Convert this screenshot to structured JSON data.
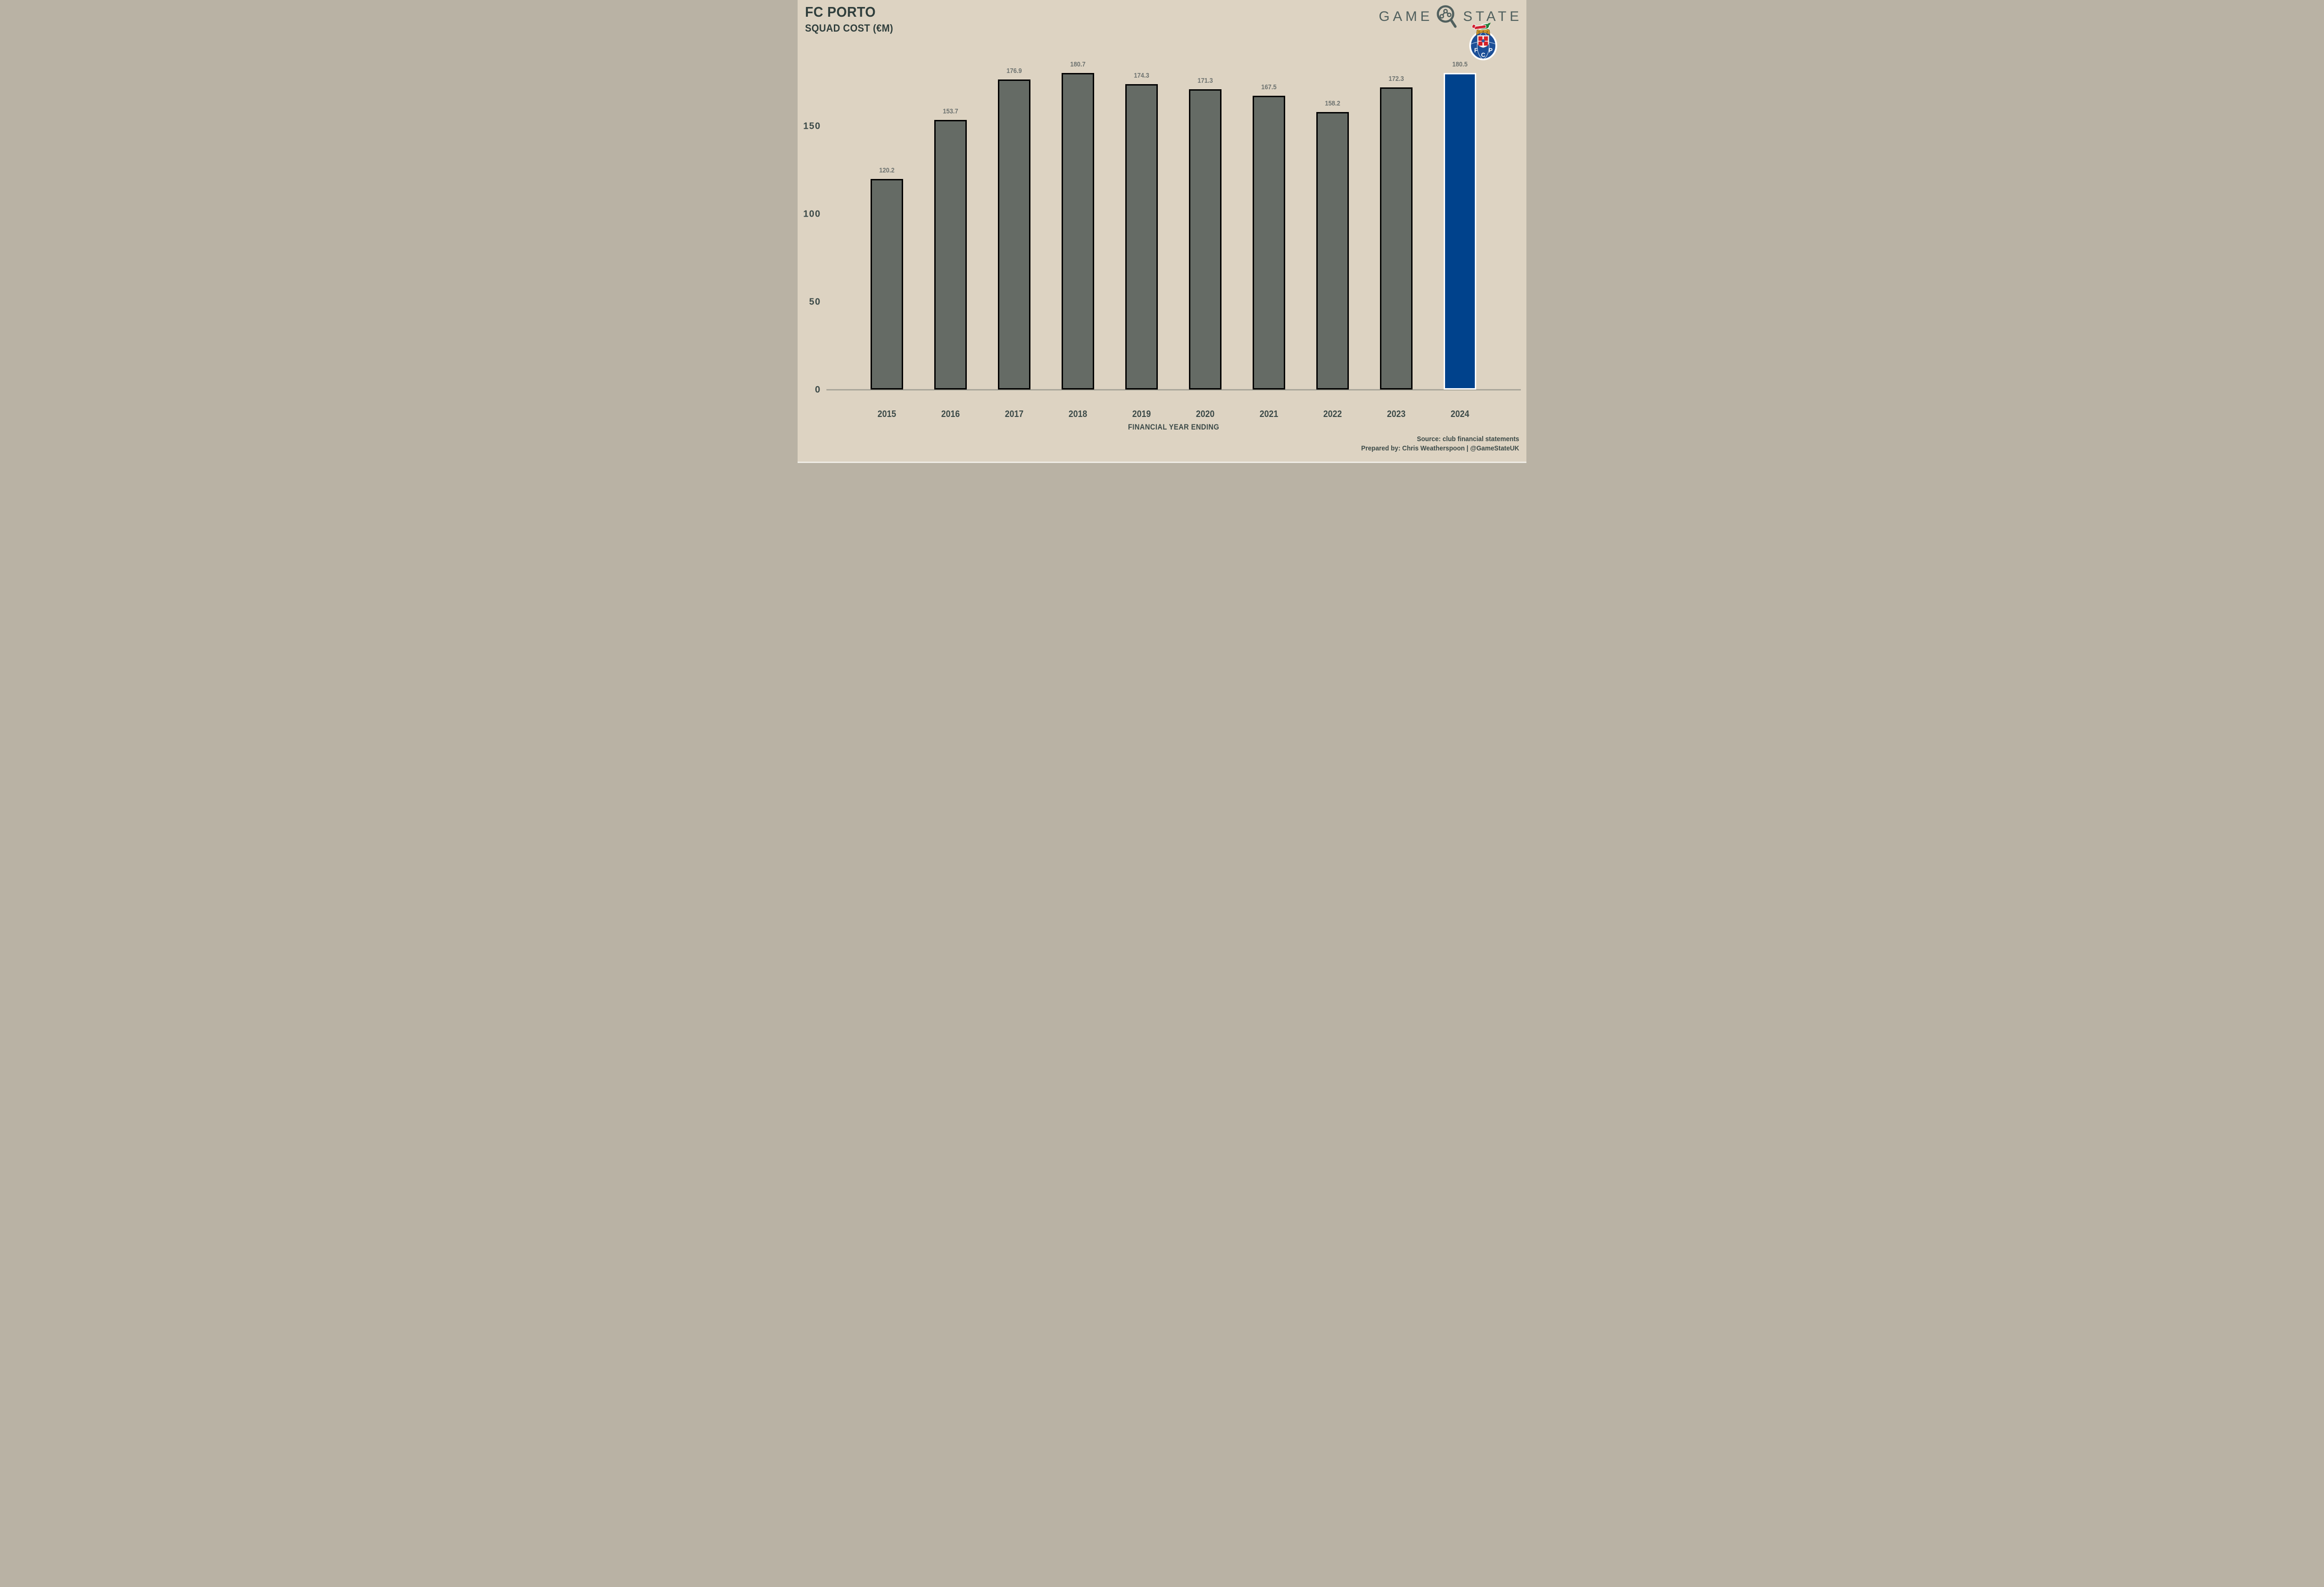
{
  "header": {
    "title": "FC PORTO",
    "subtitle": "SQUAD COST (€M)"
  },
  "brand": {
    "word_left": "GAME",
    "word_right": "STATE",
    "icon": "magnifier-chart-icon",
    "crest": "fc-porto-crest",
    "crest_letters": "FCP",
    "crest_banner": "INVICTA"
  },
  "chart_data": {
    "type": "bar",
    "title": "FC PORTO SQUAD COST (€M)",
    "categories": [
      "2015",
      "2016",
      "2017",
      "2018",
      "2019",
      "2020",
      "2021",
      "2022",
      "2023",
      "2024"
    ],
    "values": [
      120.2,
      153.7,
      176.9,
      180.7,
      174.3,
      171.3,
      167.5,
      158.2,
      172.3,
      180.5
    ],
    "value_labels": [
      "120.2",
      "153.7",
      "176.9",
      "180.7",
      "174.3",
      "171.3",
      "167.5",
      "158.2",
      "172.3",
      "180.5"
    ],
    "xlabel": "FINANCIAL YEAR ENDING",
    "ylabel": "",
    "ylim": [
      0,
      190
    ],
    "yticks": [
      0,
      50,
      100,
      150
    ],
    "grid": false,
    "legend": false,
    "bar_color": "#656b65",
    "bar_border_color": "#000000",
    "highlight_index": 9,
    "highlight_color": "#00428c",
    "highlight_border_color": "#ffffff",
    "value_label_color": "#6e7370",
    "axis_line_color": "#a9a69a"
  },
  "footer": {
    "source": "Source: club financial statements",
    "prepared": "Prepared by: Chris Weatherspoon | @GameStateUK"
  },
  "colors": {
    "background": "#ddd3c2",
    "title_text": "#2f3e3c",
    "axis_text": "#3c4a48",
    "brand_gray": "#51605e",
    "porto_blue": "#00428c"
  }
}
